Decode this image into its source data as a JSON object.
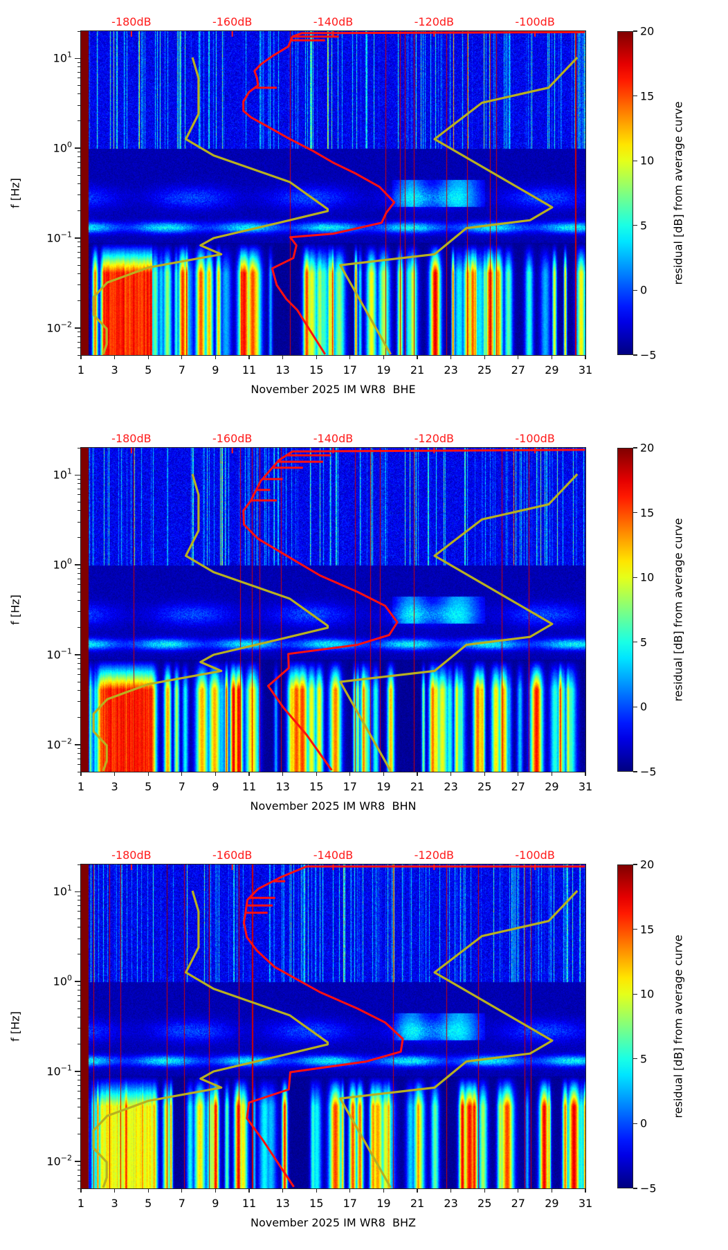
{
  "colors": {
    "average_curve": "#ff1010",
    "noise_models": "#b8b020",
    "db_labels": "#ff1a1a",
    "frame": "#222222"
  },
  "chart_data": [
    {
      "type": "heatmap",
      "title": "",
      "xlabel": "November 2025 IM WR8  BHE",
      "ylabel": "f [Hz]",
      "channel": "BHE",
      "xlim": [
        1,
        31
      ],
      "ylim_hz": [
        0.005,
        20
      ],
      "y_scale": "log",
      "x_ticks": [
        "1",
        "3",
        "5",
        "7",
        "9",
        "11",
        "13",
        "15",
        "17",
        "19",
        "21",
        "23",
        "25",
        "27",
        "29",
        "31"
      ],
      "y_ticks": [
        {
          "base": "10",
          "exp": "1",
          "value": 10
        },
        {
          "base": "10",
          "exp": "0",
          "value": 1
        },
        {
          "base": "10",
          "exp": "−1",
          "value": 0.1
        },
        {
          "base": "10",
          "exp": "−2",
          "value": 0.01
        }
      ],
      "top_axis": {
        "unit": "dB",
        "range": [
          -190,
          -90
        ],
        "ticks": [
          "-180dB",
          "-160dB",
          "-140dB",
          "-120dB",
          "-100dB"
        ],
        "tick_values": [
          -180,
          -160,
          -140,
          -120,
          -100
        ]
      },
      "colorbar": {
        "label": "residual [dB] from average curve",
        "range": [
          -5,
          20
        ],
        "ticks": [
          "20",
          "15",
          "10",
          "5",
          "0",
          "−5"
        ],
        "tick_values": [
          20,
          15,
          10,
          5,
          0,
          -5
        ],
        "colormap": "jet"
      },
      "series": [
        {
          "name": "average curve",
          "color": "#ff1010",
          "points_db_hz": [
            [
              -90.1,
              19.5
            ],
            [
              -146.2,
              19.0
            ],
            [
              -148.1,
              17.4
            ],
            [
              -148.9,
              13.5
            ],
            [
              -151.9,
              10.7
            ],
            [
              -154.4,
              8.5
            ],
            [
              -155.6,
              7.2
            ],
            [
              -155.1,
              6.0
            ],
            [
              -154.9,
              5.0
            ],
            [
              -156.7,
              4.2
            ],
            [
              -157.8,
              3.3
            ],
            [
              -157.8,
              2.6
            ],
            [
              -156.3,
              2.2
            ],
            [
              -153.0,
              1.74
            ],
            [
              -148.9,
              1.29
            ],
            [
              -144.0,
              0.93
            ],
            [
              -140.0,
              0.69
            ],
            [
              -135.5,
              0.52
            ],
            [
              -130.8,
              0.37
            ],
            [
              -127.9,
              0.25
            ],
            [
              -129.5,
              0.19
            ],
            [
              -130.4,
              0.148
            ],
            [
              -140.0,
              0.112
            ],
            [
              -148.5,
              0.102
            ],
            [
              -147.3,
              0.083
            ],
            [
              -147.9,
              0.06
            ],
            [
              -152.1,
              0.046
            ],
            [
              -151.2,
              0.03
            ],
            [
              -149.3,
              0.021
            ],
            [
              -147.1,
              0.0158
            ],
            [
              -144.8,
              0.0098
            ],
            [
              -141.6,
              0.0051
            ]
          ],
          "spikes_db_hz": [
            [
              -151.2,
              4.7
            ],
            [
              -138.9,
              17.4
            ],
            [
              -141.6,
              15.8
            ]
          ]
        },
        {
          "name": "low noise model",
          "color": "#b8b020",
          "points_db_hz": [
            [
              -167.9,
              10.2
            ],
            [
              -166.7,
              6.0
            ],
            [
              -166.7,
              2.4
            ],
            [
              -169.2,
              1.26
            ],
            [
              -163.7,
              0.83
            ],
            [
              -148.6,
              0.42
            ],
            [
              -141.1,
              0.21
            ],
            [
              -141.1,
              0.2
            ],
            [
              -150.3,
              0.15
            ],
            [
              -163.7,
              0.1
            ],
            [
              -166.3,
              0.083
            ],
            [
              -162.2,
              0.066
            ],
            [
              -176.7,
              0.047
            ],
            [
              -184.8,
              0.032
            ],
            [
              -187.5,
              0.022
            ],
            [
              -187.5,
              0.014
            ],
            [
              -184.9,
              0.0098
            ],
            [
              -184.9,
              0.0066
            ],
            [
              -185.6,
              0.0051
            ]
          ]
        },
        {
          "name": "high noise model",
          "color": "#b8b020",
          "points_db_hz": [
            [
              -91.6,
              10.2
            ],
            [
              -97.3,
              4.7
            ],
            [
              -110.5,
              3.2
            ],
            [
              -119.9,
              1.26
            ],
            [
              -96.6,
              0.22
            ],
            [
              -101.0,
              0.158
            ],
            [
              -113.6,
              0.129
            ],
            [
              -119.9,
              0.066
            ],
            [
              -138.6,
              0.05
            ],
            [
              -128.6,
              0.0051
            ]
          ]
        }
      ]
    },
    {
      "type": "heatmap",
      "title": "",
      "xlabel": "November 2025 IM WR8  BHN",
      "ylabel": "f [Hz]",
      "channel": "BHN",
      "xlim": [
        1,
        31
      ],
      "ylim_hz": [
        0.005,
        20
      ],
      "y_scale": "log",
      "x_ticks": [
        "1",
        "3",
        "5",
        "7",
        "9",
        "11",
        "13",
        "15",
        "17",
        "19",
        "21",
        "23",
        "25",
        "27",
        "29",
        "31"
      ],
      "y_ticks": [
        {
          "base": "10",
          "exp": "1",
          "value": 10
        },
        {
          "base": "10",
          "exp": "0",
          "value": 1
        },
        {
          "base": "10",
          "exp": "−1",
          "value": 0.1
        },
        {
          "base": "10",
          "exp": "−2",
          "value": 0.01
        }
      ],
      "top_axis": {
        "unit": "dB",
        "range": [
          -190,
          -90
        ],
        "ticks": [
          "-180dB",
          "-160dB",
          "-140dB",
          "-120dB",
          "-100dB"
        ],
        "tick_values": [
          -180,
          -160,
          -140,
          -120,
          -100
        ]
      },
      "colorbar": {
        "label": "residual [dB] from average curve",
        "range": [
          -5,
          20
        ],
        "ticks": [
          "20",
          "15",
          "10",
          "5",
          "0",
          "−5"
        ],
        "tick_values": [
          20,
          15,
          10,
          5,
          0,
          -5
        ],
        "colormap": "jet"
      },
      "series": [
        {
          "name": "average curve",
          "color": "#ff1010",
          "points_db_hz": [
            [
              -90.1,
              19.0
            ],
            [
              -148.1,
              18.2
            ],
            [
              -150.8,
              14.5
            ],
            [
              -154.4,
              8.5
            ],
            [
              -156.3,
              5.2
            ],
            [
              -157.8,
              4.0
            ],
            [
              -157.7,
              2.8
            ],
            [
              -154.9,
              1.95
            ],
            [
              -149.5,
              1.29
            ],
            [
              -142.6,
              0.76
            ],
            [
              -135.2,
              0.5
            ],
            [
              -129.7,
              0.35
            ],
            [
              -127.3,
              0.23
            ],
            [
              -128.9,
              0.166
            ],
            [
              -135.2,
              0.129
            ],
            [
              -148.9,
              0.102
            ],
            [
              -148.8,
              0.071
            ],
            [
              -152.9,
              0.045
            ],
            [
              -149.9,
              0.026
            ],
            [
              -145.3,
              0.0129
            ],
            [
              -140.3,
              0.0052
            ]
          ],
          "spikes_db_hz": [
            [
              -151.2,
              5.2
            ],
            [
              -140.5,
              16.5
            ],
            [
              -142.0,
              14.0
            ],
            [
              -146.0,
              12.0
            ],
            [
              -150.0,
              9.0
            ],
            [
              -152.5,
              6.8
            ]
          ]
        },
        {
          "name": "low noise model",
          "color": "#b8b020",
          "points_db_hz": [
            [
              -167.9,
              10.2
            ],
            [
              -166.7,
              6.0
            ],
            [
              -166.7,
              2.4
            ],
            [
              -169.2,
              1.26
            ],
            [
              -163.7,
              0.83
            ],
            [
              -148.6,
              0.42
            ],
            [
              -141.1,
              0.21
            ],
            [
              -141.1,
              0.2
            ],
            [
              -150.3,
              0.15
            ],
            [
              -163.7,
              0.1
            ],
            [
              -166.3,
              0.083
            ],
            [
              -162.2,
              0.066
            ],
            [
              -176.7,
              0.047
            ],
            [
              -184.8,
              0.032
            ],
            [
              -187.5,
              0.022
            ],
            [
              -187.5,
              0.014
            ],
            [
              -184.9,
              0.0098
            ],
            [
              -184.9,
              0.0066
            ],
            [
              -185.6,
              0.0051
            ]
          ]
        },
        {
          "name": "high noise model",
          "color": "#b8b020",
          "points_db_hz": [
            [
              -91.6,
              10.2
            ],
            [
              -97.3,
              4.7
            ],
            [
              -110.5,
              3.2
            ],
            [
              -119.9,
              1.26
            ],
            [
              -96.6,
              0.22
            ],
            [
              -101.0,
              0.158
            ],
            [
              -113.6,
              0.129
            ],
            [
              -119.9,
              0.066
            ],
            [
              -138.6,
              0.05
            ],
            [
              -128.6,
              0.0051
            ]
          ]
        }
      ]
    },
    {
      "type": "heatmap",
      "title": "",
      "xlabel": "November 2025 IM WR8  BHZ",
      "ylabel": "f [Hz]",
      "channel": "BHZ",
      "xlim": [
        1,
        31
      ],
      "ylim_hz": [
        0.005,
        20
      ],
      "y_scale": "log",
      "x_ticks": [
        "1",
        "3",
        "5",
        "7",
        "9",
        "11",
        "13",
        "15",
        "17",
        "19",
        "21",
        "23",
        "25",
        "27",
        "29",
        "31"
      ],
      "y_ticks": [
        {
          "base": "10",
          "exp": "1",
          "value": 10
        },
        {
          "base": "10",
          "exp": "0",
          "value": 1
        },
        {
          "base": "10",
          "exp": "−1",
          "value": 0.1
        },
        {
          "base": "10",
          "exp": "−2",
          "value": 0.01
        }
      ],
      "top_axis": {
        "unit": "dB",
        "range": [
          -190,
          -90
        ],
        "ticks": [
          "-180dB",
          "-160dB",
          "-140dB",
          "-120dB",
          "-100dB"
        ],
        "tick_values": [
          -180,
          -160,
          -140,
          -120,
          -100
        ]
      },
      "colorbar": {
        "label": "residual [dB] from average curve",
        "range": [
          -5,
          20
        ],
        "ticks": [
          "20",
          "15",
          "10",
          "5",
          "0",
          "−5"
        ],
        "tick_values": [
          20,
          15,
          10,
          5,
          0,
          -5
        ],
        "colormap": "jet"
      },
      "series": [
        {
          "name": "average curve",
          "color": "#ff1010",
          "points_db_hz": [
            [
              -90.1,
              19.0
            ],
            [
              -145.3,
              19.0
            ],
            [
              -150.3,
              14.5
            ],
            [
              -154.9,
              10.7
            ],
            [
              -157.0,
              8.1
            ],
            [
              -157.7,
              4.5
            ],
            [
              -157.1,
              3.1
            ],
            [
              -155.1,
              2.2
            ],
            [
              -151.6,
              1.45
            ],
            [
              -142.6,
              0.76
            ],
            [
              -135.2,
              0.5
            ],
            [
              -129.7,
              0.35
            ],
            [
              -126.2,
              0.23
            ],
            [
              -126.6,
              0.166
            ],
            [
              -133.4,
              0.129
            ],
            [
              -148.5,
              0.098
            ],
            [
              -148.8,
              0.063
            ],
            [
              -156.7,
              0.045
            ],
            [
              -157.1,
              0.03
            ],
            [
              -154.0,
              0.0174
            ],
            [
              -147.8,
              0.0052
            ]
          ],
          "spikes_db_hz": [
            [
              -151.5,
              8.5
            ],
            [
              -149.5,
              13.0
            ],
            [
              -152.0,
              7.0
            ],
            [
              -153.0,
              5.8
            ]
          ]
        },
        {
          "name": "low noise model",
          "color": "#b8b020",
          "points_db_hz": [
            [
              -167.9,
              10.2
            ],
            [
              -166.7,
              6.0
            ],
            [
              -166.7,
              2.4
            ],
            [
              -169.2,
              1.26
            ],
            [
              -163.7,
              0.83
            ],
            [
              -148.6,
              0.42
            ],
            [
              -141.1,
              0.21
            ],
            [
              -141.1,
              0.2
            ],
            [
              -150.3,
              0.15
            ],
            [
              -163.7,
              0.1
            ],
            [
              -166.3,
              0.083
            ],
            [
              -162.2,
              0.066
            ],
            [
              -176.7,
              0.047
            ],
            [
              -184.8,
              0.032
            ],
            [
              -187.5,
              0.022
            ],
            [
              -187.5,
              0.014
            ],
            [
              -184.9,
              0.0098
            ],
            [
              -184.9,
              0.0066
            ],
            [
              -185.6,
              0.0051
            ]
          ]
        },
        {
          "name": "high noise model",
          "color": "#b8b020",
          "points_db_hz": [
            [
              -91.6,
              10.2
            ],
            [
              -97.3,
              4.7
            ],
            [
              -110.5,
              3.2
            ],
            [
              -119.9,
              1.26
            ],
            [
              -96.6,
              0.22
            ],
            [
              -101.0,
              0.158
            ],
            [
              -113.6,
              0.129
            ],
            [
              -119.9,
              0.066
            ],
            [
              -138.6,
              0.05
            ],
            [
              -128.6,
              0.0051
            ]
          ]
        }
      ]
    }
  ]
}
